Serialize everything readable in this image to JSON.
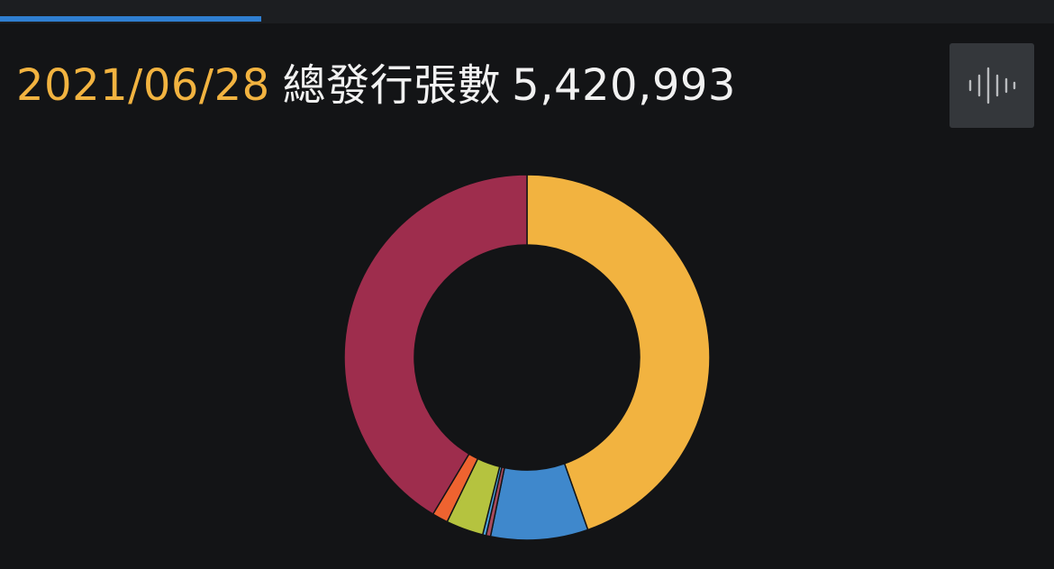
{
  "tabs": [
    {
      "label": ""
    },
    {
      "label": ""
    },
    {
      "label": ""
    },
    {
      "label": ""
    }
  ],
  "header": {
    "date": "2021/06/28",
    "label": "總發行張數",
    "value": "5,420,993"
  },
  "audio_button": {
    "icon": "audio-waveform-icon"
  },
  "colors": {
    "background": "#131416",
    "accent": "#f2b340",
    "tab_indicator": "#2f7fd1"
  },
  "chart_data": {
    "type": "pie",
    "donut": true,
    "title": "",
    "slices": [
      {
        "value": 44.6,
        "color": "#f2b340"
      },
      {
        "value": 8.6,
        "color": "#3f88cc"
      },
      {
        "value": 0.4,
        "color": "#a84a5d"
      },
      {
        "value": 0.3,
        "color": "#4aa3df"
      },
      {
        "value": 3.3,
        "color": "#b5c33f"
      },
      {
        "value": 1.4,
        "color": "#ee6330"
      },
      {
        "value": 41.4,
        "color": "#9e2d4d"
      }
    ]
  }
}
